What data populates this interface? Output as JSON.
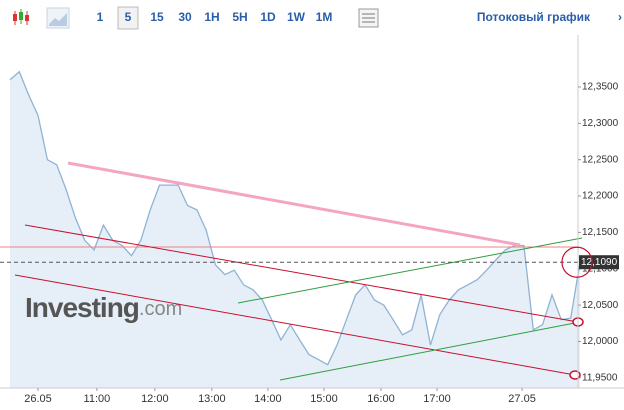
{
  "toolbar": {
    "intervals": [
      "1",
      "5",
      "15",
      "30",
      "1H",
      "5H",
      "1D",
      "1W",
      "1M"
    ],
    "active_interval": "5",
    "stream_link": "Потоковый график"
  },
  "chart_data": {
    "type": "area",
    "color": "#8fb3d4",
    "fill": "#e6eff7",
    "watermark": {
      "brand": "Investing",
      "suffix": ".com"
    },
    "values": [
      12.36,
      12.371,
      12.339,
      12.311,
      12.25,
      12.243,
      12.209,
      12.17,
      12.139,
      12.126,
      12.16,
      12.139,
      12.132,
      12.118,
      12.139,
      12.181,
      12.215,
      12.215,
      12.215,
      12.187,
      12.181,
      12.153,
      12.105,
      12.092,
      12.098,
      12.078,
      12.071,
      12.057,
      12.03,
      12.002,
      12.023,
      12.002,
      11.982,
      11.975,
      11.968,
      11.995,
      12.03,
      12.064,
      12.078,
      12.057,
      12.05,
      12.03,
      12.009,
      12.016,
      12.064,
      11.995,
      12.037,
      12.057,
      12.071,
      12.078,
      12.085,
      12.098,
      12.112,
      12.126,
      12.132,
      12.132,
      12.016,
      12.023,
      12.064,
      12.03,
      12.032,
      12.109
    ],
    "xlim": [
      0,
      61
    ],
    "xticks": [
      {
        "value": 3.0,
        "label": "26.05"
      },
      {
        "value": 9.3,
        "label": "11:00"
      },
      {
        "value": 15.5,
        "label": "12:00"
      },
      {
        "value": 21.6,
        "label": "13:00"
      },
      {
        "value": 27.6,
        "label": "14:00"
      },
      {
        "value": 33.6,
        "label": "15:00"
      },
      {
        "value": 39.7,
        "label": "16:00"
      },
      {
        "value": 45.7,
        "label": "17:00"
      },
      {
        "value": 54.8,
        "label": "27.05"
      }
    ],
    "ylim": [
      11.936,
      12.4215
    ],
    "yticks": [
      {
        "value": 12.35,
        "label": "12,3500"
      },
      {
        "value": 12.3,
        "label": "12,3000"
      },
      {
        "value": 12.25,
        "label": "12,2500"
      },
      {
        "value": 12.2,
        "label": "12,2000"
      },
      {
        "value": 12.15,
        "label": "12,1500"
      },
      {
        "value": 12.1,
        "label": "12,1000"
      },
      {
        "value": 12.05,
        "label": "12,0500"
      },
      {
        "value": 12.0,
        "label": "12,0000"
      },
      {
        "value": 11.95,
        "label": "11,9500"
      }
    ],
    "last_price": {
      "value": 12.109,
      "label": "12,1090"
    }
  }
}
